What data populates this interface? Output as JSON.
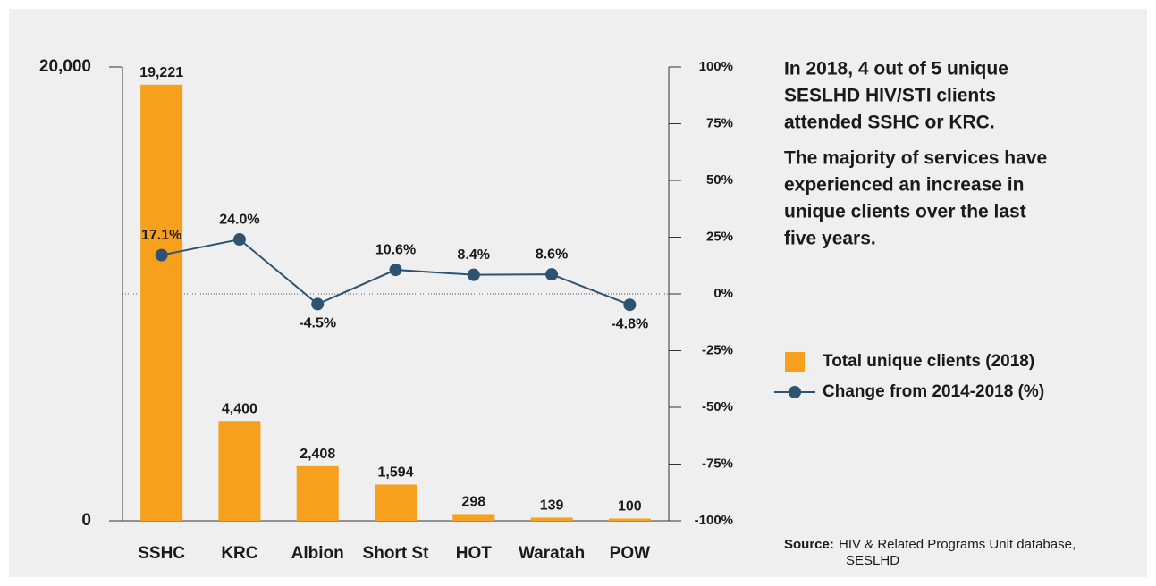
{
  "chart_data": {
    "type": "bar",
    "categories": [
      "SSHC",
      "KRC",
      "Albion",
      "Short St",
      "HOT",
      "Waratah",
      "POW"
    ],
    "series": [
      {
        "name": "Total unique clients (2018)",
        "type": "bar",
        "color": "#f7a01d",
        "values": [
          19221,
          4400,
          2408,
          1594,
          298,
          139,
          100
        ],
        "value_labels": [
          "19,221",
          "4,400",
          "2,408",
          "1,594",
          "298",
          "139",
          "100"
        ]
      },
      {
        "name": "Change from 2014-2018 (%)",
        "type": "line",
        "axis": "y2",
        "color": "#2d5371",
        "values": [
          17.1,
          24.0,
          -4.5,
          10.6,
          8.4,
          8.6,
          -4.8
        ],
        "value_labels": [
          "17.1%",
          "24.0%",
          "-4.5%",
          "10.6%",
          "8.4%",
          "8.6%",
          "-4.8%"
        ]
      }
    ],
    "ylim": [
      0,
      20000
    ],
    "yticks": [
      0,
      {
        "value": 20000,
        "label": "20,000"
      }
    ],
    "y2lim": [
      -100,
      100
    ],
    "y2ticks": [
      {
        "value": -100,
        "label": "-100%"
      },
      {
        "value": -75,
        "label": "-75%"
      },
      {
        "value": -50,
        "label": "-50%"
      },
      {
        "value": -25,
        "label": "-25%"
      },
      {
        "value": 0,
        "label": "0%"
      },
      {
        "value": 25,
        "label": "25%"
      },
      {
        "value": 50,
        "label": "50%"
      },
      {
        "value": 75,
        "label": "75%"
      },
      {
        "value": 100,
        "label": "100%"
      }
    ],
    "legend": "right",
    "annotations": [
      [
        "In 2018, 4 out of 5 unique",
        "SESLHD HIV/STI clients",
        "attended SSHC or KRC."
      ],
      [
        "The majority of services have",
        "experienced an increase in",
        "unique clients over the last",
        "five years."
      ]
    ],
    "source_label": "Source:",
    "source_lines": [
      "HIV & Related Programs Unit database,",
      "SESLHD"
    ]
  }
}
